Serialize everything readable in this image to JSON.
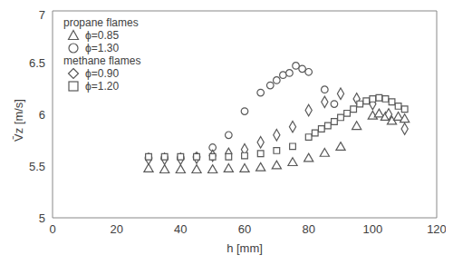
{
  "chart_data": {
    "type": "scatter",
    "x_label": "h [mm]",
    "y_label": "V̄z [m/s]",
    "xlim": [
      0,
      120
    ],
    "xticks": [
      0,
      20,
      40,
      60,
      80,
      100,
      120
    ],
    "ylim": [
      5,
      7
    ],
    "yticks": [
      5,
      5.5,
      6,
      6.5,
      7
    ],
    "grid": false,
    "legend": "upper left",
    "series": [
      {
        "name": "ϕ=0.85",
        "group": "propane flames",
        "marker": "triangle",
        "color": "#595959",
        "x": [
          30,
          35,
          40,
          45,
          50,
          55,
          60,
          65,
          70,
          75,
          80,
          85,
          90,
          95,
          100,
          102,
          104,
          106,
          108,
          110
        ],
        "values": [
          5.47,
          5.46,
          5.46,
          5.46,
          5.46,
          5.47,
          5.47,
          5.48,
          5.5,
          5.53,
          5.57,
          5.62,
          5.68,
          5.88,
          5.98,
          6.0,
          5.97,
          5.93,
          5.97,
          5.95
        ]
      },
      {
        "name": "ϕ=1.30",
        "group": "propane flames",
        "marker": "circle",
        "color": "#595959",
        "x": [
          30,
          35,
          40,
          45,
          50,
          55,
          60,
          65,
          68,
          70,
          72,
          74,
          76,
          78,
          80,
          85,
          88
        ],
        "values": [
          5.58,
          5.58,
          5.58,
          5.59,
          5.68,
          5.8,
          6.03,
          6.21,
          6.28,
          6.33,
          6.38,
          6.4,
          6.47,
          6.44,
          6.41,
          6.24,
          6.1
        ]
      },
      {
        "name": "ϕ=0.90",
        "group": "methane flames",
        "marker": "diamond",
        "color": "#595959",
        "x": [
          30,
          35,
          40,
          45,
          50,
          55,
          60,
          65,
          70,
          75,
          80,
          85,
          90,
          95,
          100,
          105,
          110
        ],
        "values": [
          5.57,
          5.57,
          5.57,
          5.58,
          5.6,
          5.62,
          5.66,
          5.73,
          5.8,
          5.88,
          6.04,
          6.12,
          6.2,
          6.15,
          6.1,
          6.0,
          5.86
        ]
      },
      {
        "name": "ϕ=1.20",
        "group": "methane flames",
        "marker": "square",
        "color": "#595959",
        "x": [
          30,
          35,
          40,
          45,
          50,
          55,
          60,
          65,
          70,
          75,
          80,
          82,
          84,
          86,
          88,
          90,
          92,
          94,
          96,
          98,
          100,
          102,
          104,
          106,
          108,
          110
        ],
        "values": [
          5.59,
          5.59,
          5.59,
          5.59,
          5.59,
          5.59,
          5.6,
          5.62,
          5.65,
          5.69,
          5.78,
          5.82,
          5.86,
          5.89,
          5.93,
          5.97,
          6.01,
          6.05,
          6.1,
          6.13,
          6.15,
          6.16,
          6.15,
          6.12,
          6.08,
          6.05
        ]
      }
    ]
  }
}
